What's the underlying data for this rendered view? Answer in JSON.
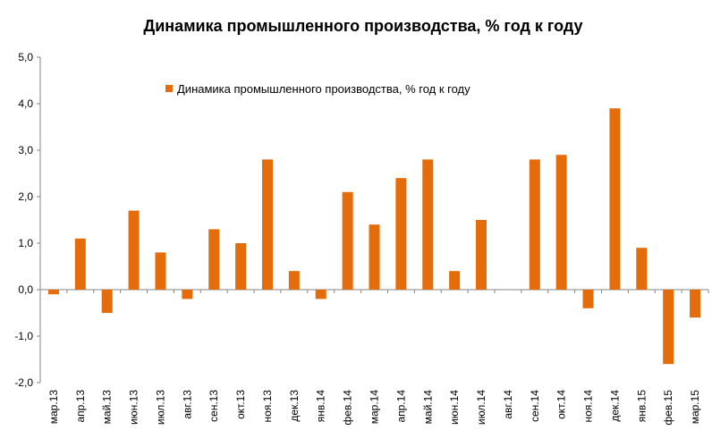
{
  "chart_data": {
    "type": "bar",
    "title": "Динамика промышленного производства, % год к году",
    "legend_position": "top-center",
    "grid": false,
    "ylim": [
      -2.0,
      5.0
    ],
    "y_ticks": [
      "5,0",
      "4,0",
      "3,0",
      "2,0",
      "1,0",
      "0,0",
      "-1,0",
      "-2,0"
    ],
    "y_tick_values": [
      5,
      4,
      3,
      2,
      1,
      0,
      -1,
      -2
    ],
    "categories": [
      "мар.13",
      "апр.13",
      "май.13",
      "июн.13",
      "июл.13",
      "авг.13",
      "сен.13",
      "окт.13",
      "ноя.13",
      "дек.13",
      "янв.14",
      "фев.14",
      "мар.14",
      "апр.14",
      "май.14",
      "июн.14",
      "июл.14",
      "авг.14",
      "сен.14",
      "окт.14",
      "ноя.14",
      "дек.14",
      "янв.15",
      "фев.15",
      "мар.15"
    ],
    "series": [
      {
        "name": "Динамика промышленного производства, % год к году",
        "color": "#E46C0A",
        "values": [
          -0.1,
          1.1,
          -0.5,
          1.7,
          0.8,
          -0.2,
          1.3,
          1.0,
          2.8,
          0.4,
          -0.2,
          2.1,
          1.4,
          2.4,
          2.8,
          0.4,
          1.5,
          0.0,
          2.8,
          2.9,
          -0.4,
          3.9,
          0.9,
          -1.6,
          -0.6
        ]
      }
    ]
  }
}
